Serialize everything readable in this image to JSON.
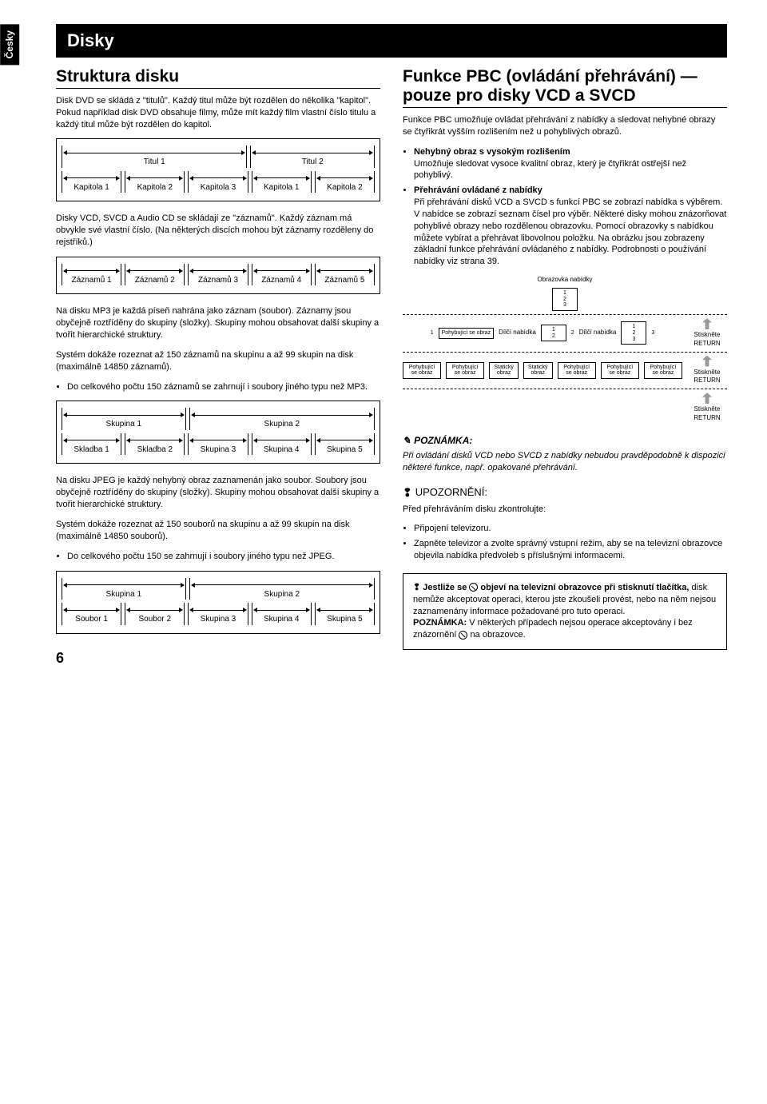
{
  "lang_tab": "Česky",
  "page_title": "Disky",
  "page_number": "6",
  "left": {
    "h_struct": "Struktura disku",
    "p_dvd": "Disk DVD se skládá z \"titulů\". Každý titul může být rozdělen do několika \"kapitol\". Pokud například disk DVD obsahuje filmy, může mít každý film vlastní číslo titulu a každý titul může být rozdělen do kapitol.",
    "dvd_tier1": [
      "Titul 1",
      "Titul 2"
    ],
    "dvd_tier2": [
      "Kapitola 1",
      "Kapitola 2",
      "Kapitola 3",
      "Kapitola 1",
      "Kapitola 2"
    ],
    "p_vcd": "Disky VCD, SVCD a Audio CD se skládají ze \"záznamů\". Každý záznam má obvykle své vlastní číslo. (Na některých discích mohou být záznamy rozděleny do rejstříků.)",
    "tracks": [
      "Záznamů 1",
      "Záznamů 2",
      "Záznamů 3",
      "Záznamů 4",
      "Záznamů 5"
    ],
    "p_mp3_1": "Na disku MP3 je každá píseň nahrána jako záznam (soubor). Záznamy jsou obyčejně roztříděny do skupiny (složky). Skupiny mohou obsahovat další skupiny a tvořit hierarchické struktury.",
    "p_mp3_2": "Systém dokáže rozeznat až 150 záznamů na skupinu a až 99 skupin na disk (maximálně 14850 záznamů).",
    "li_mp3": "Do celkového počtu 150 záznamů se zahrnují i soubory jiného typu než MP3.",
    "mp3_tier1": [
      "Skupina 1",
      "Skupina 2"
    ],
    "mp3_tier2": [
      "Skladba 1",
      "Skladba 2",
      "Skupina 3",
      "Skupina 4",
      "Skupina 5"
    ],
    "p_jpeg_1": "Na disku JPEG je každý nehybný obraz zaznamenán jako soubor. Soubory jsou obyčejně roztříděny do skupiny (složky). Skupiny mohou obsahovat další skupiny a tvořit hierarchické struktury.",
    "p_jpeg_2": "Systém dokáže rozeznat až 150 souborů na skupinu a až 99 skupin na disk (maximálně 14850 souborů).",
    "li_jpeg": "Do celkového počtu 150 se zahrnují i soubory jiného typu než JPEG.",
    "jpeg_tier1": [
      "Skupina 1",
      "Skupina 2"
    ],
    "jpeg_tier2": [
      "Soubor 1",
      "Soubor 2",
      "Skupina 3",
      "Skupina 4",
      "Skupina 5"
    ]
  },
  "right": {
    "h_pbc": "Funkce PBC (ovládání přehrávání) —pouze pro disky VCD a SVCD",
    "p_pbc": "Funkce PBC umožňuje ovládat přehrávání z nabídky a sledovat nehybné obrazy se čtyřikrát vyšším rozlišením než u pohyblivých obrazů.",
    "li1_b": "Nehybný obraz s vysokým rozlišením",
    "li1_t": "Umožňuje sledovat vysoce kvalitní obraz, který je čtyřikrát ostřejší než pohyblivý.",
    "li2_b": "Přehrávání ovládané z nabídky",
    "li2_t": "Při přehrávání disků VCD a SVCD s funkcí PBC se zobrazí nabídka s výběrem. V nabídce se zobrazí seznam čísel pro výběr. Některé disky mohou znázorňovat pohyblivé obrazy nebo rozdělenou obrazovku. Pomocí obrazovky s nabídkou můžete vybírat a přehrávat libovolnou položku. Na obrázku jsou zobrazeny základní funkce přehrávání ovládaného z nabídky. Podrobnosti o používání nabídky viz strana 39.",
    "menu": {
      "screen": "Obrazovka nabídky",
      "sub": "Dílčí nabídka",
      "moving": "Pohybující se obraz",
      "static": "Statický obraz",
      "ret": "Stiskněte RETURN"
    },
    "note_head": "POZNÁMKA:",
    "note_text": "Při ovládání disků VCD nebo SVCD z nabídky nebudou pravděpodobně k dispozici některé funkce, např. opakované přehrávání.",
    "warn_head": "UPOZORNĚNÍ:",
    "warn_check": "Před přehráváním disku zkontrolujte:",
    "warn_li1": "Připojení televizoru.",
    "warn_li2": "Zapněte televizor a zvolte správný vstupní režim, aby se na televizní obrazovce objevila nabídka předvoleb s příslušnými informacemi.",
    "box_b1": "Jestliže se ",
    "box_b2": " objeví na televizní obrazovce při stisknutí tlačítka,",
    "box_t1": " disk nemůže akceptovat operaci, kterou jste zkoušeli provést, nebo na něm nejsou zaznamenány informace požadované pro tuto operaci.",
    "box_b3": "POZNÁMKA:",
    "box_t2": " V některých případech nejsou operace akceptovány i bez znázornění ",
    "box_t3": " na obrazovce."
  }
}
